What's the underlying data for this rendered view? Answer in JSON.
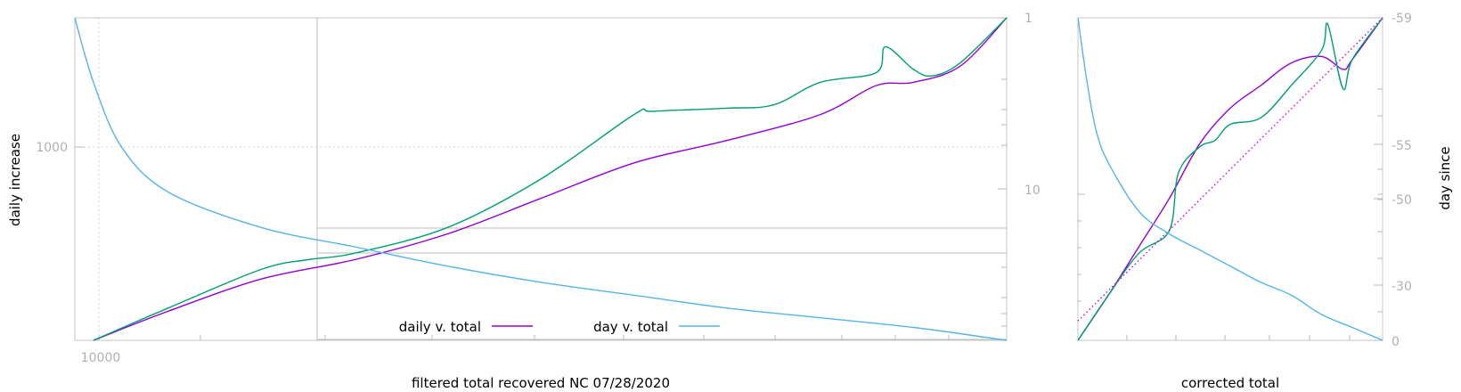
{
  "chart_data": [
    {
      "type": "line",
      "title": "",
      "xlabel": "filtered total recovered NC 07/28/2020",
      "ylabel_left": "daily increase",
      "y_left_scale": "log",
      "y_right_scale": "log-reversed",
      "grid": "dotted",
      "legend_position": "bottom-center",
      "x_ticks": [
        {
          "value": 10000,
          "label": "10000"
        }
      ],
      "y_left_ticks": [
        {
          "value": 1000,
          "label": "1000"
        }
      ],
      "y_right_ticks": [
        {
          "value": 1,
          "label": "1"
        },
        {
          "value": 10,
          "label": "10"
        }
      ],
      "series": [
        {
          "name": "daily v. total",
          "color": "#9400d3",
          "points": [
            [
              0.02,
              0.0
            ],
            [
              0.1,
              0.09
            ],
            [
              0.2,
              0.19
            ],
            [
              0.3,
              0.25
            ],
            [
              0.4,
              0.33
            ],
            [
              0.5,
              0.44
            ],
            [
              0.6,
              0.55
            ],
            [
              0.7,
              0.62
            ],
            [
              0.8,
              0.7
            ],
            [
              0.86,
              0.79
            ],
            [
              0.9,
              0.8
            ],
            [
              0.95,
              0.85
            ],
            [
              1.0,
              1.0
            ]
          ]
        },
        {
          "name": "",
          "color": "#009e73",
          "points": [
            [
              0.02,
              0.0
            ],
            [
              0.1,
              0.1
            ],
            [
              0.2,
              0.22
            ],
            [
              0.25,
              0.25
            ],
            [
              0.3,
              0.27
            ],
            [
              0.4,
              0.35
            ],
            [
              0.5,
              0.5
            ],
            [
              0.6,
              0.7
            ],
            [
              0.62,
              0.71
            ],
            [
              0.7,
              0.72
            ],
            [
              0.75,
              0.73
            ],
            [
              0.8,
              0.8
            ],
            [
              0.86,
              0.83
            ],
            [
              0.87,
              0.91
            ],
            [
              0.9,
              0.84
            ],
            [
              0.92,
              0.82
            ],
            [
              0.95,
              0.86
            ],
            [
              1.0,
              1.0
            ]
          ]
        },
        {
          "name": "day v. total",
          "color": "#56b4e9",
          "points": [
            [
              0.0,
              1.0
            ],
            [
              0.02,
              0.8
            ],
            [
              0.05,
              0.6
            ],
            [
              0.1,
              0.46
            ],
            [
              0.2,
              0.35
            ],
            [
              0.3,
              0.29
            ],
            [
              0.4,
              0.23
            ],
            [
              0.5,
              0.18
            ],
            [
              0.6,
              0.14
            ],
            [
              0.7,
              0.1
            ],
            [
              0.8,
              0.07
            ],
            [
              0.9,
              0.04
            ],
            [
              1.0,
              0.0
            ]
          ]
        }
      ]
    },
    {
      "type": "line",
      "title": "",
      "xlabel": "corrected total",
      "ylabel_right": "day since",
      "y_right_ticks": [
        {
          "value": -59,
          "label": "-59"
        },
        {
          "value": -55,
          "label": "-55"
        },
        {
          "value": -50,
          "label": "-50"
        },
        {
          "value": -30,
          "label": "-30"
        },
        {
          "value": 0,
          "label": "0"
        }
      ],
      "series": [
        {
          "name": "",
          "color": "#9400d3",
          "points": [
            [
              0.0,
              0.0
            ],
            [
              0.1,
              0.14
            ],
            [
              0.2,
              0.29
            ],
            [
              0.3,
              0.44
            ],
            [
              0.4,
              0.61
            ],
            [
              0.5,
              0.72
            ],
            [
              0.6,
              0.79
            ],
            [
              0.7,
              0.86
            ],
            [
              0.8,
              0.88
            ],
            [
              0.87,
              0.84
            ],
            [
              0.9,
              0.87
            ],
            [
              1.0,
              1.0
            ]
          ]
        },
        {
          "name": "",
          "color": "#009e73",
          "points": [
            [
              0.0,
              0.0
            ],
            [
              0.1,
              0.14
            ],
            [
              0.2,
              0.27
            ],
            [
              0.3,
              0.34
            ],
            [
              0.33,
              0.52
            ],
            [
              0.4,
              0.6
            ],
            [
              0.45,
              0.62
            ],
            [
              0.5,
              0.67
            ],
            [
              0.6,
              0.69
            ],
            [
              0.7,
              0.79
            ],
            [
              0.8,
              0.9
            ],
            [
              0.82,
              0.98
            ],
            [
              0.87,
              0.78
            ],
            [
              0.9,
              0.87
            ],
            [
              1.0,
              1.0
            ]
          ]
        },
        {
          "name": "",
          "color": "#d000d0",
          "style": "dotted",
          "points": [
            [
              0.0,
              0.06
            ],
            [
              1.0,
              1.0
            ]
          ]
        },
        {
          "name": "",
          "color": "#56b4e9",
          "points": [
            [
              0.0,
              1.0
            ],
            [
              0.03,
              0.8
            ],
            [
              0.06,
              0.65
            ],
            [
              0.1,
              0.55
            ],
            [
              0.2,
              0.4
            ],
            [
              0.3,
              0.33
            ],
            [
              0.4,
              0.28
            ],
            [
              0.5,
              0.23
            ],
            [
              0.6,
              0.18
            ],
            [
              0.7,
              0.14
            ],
            [
              0.8,
              0.08
            ],
            [
              0.9,
              0.04
            ],
            [
              1.0,
              0.0
            ]
          ]
        }
      ]
    }
  ]
}
